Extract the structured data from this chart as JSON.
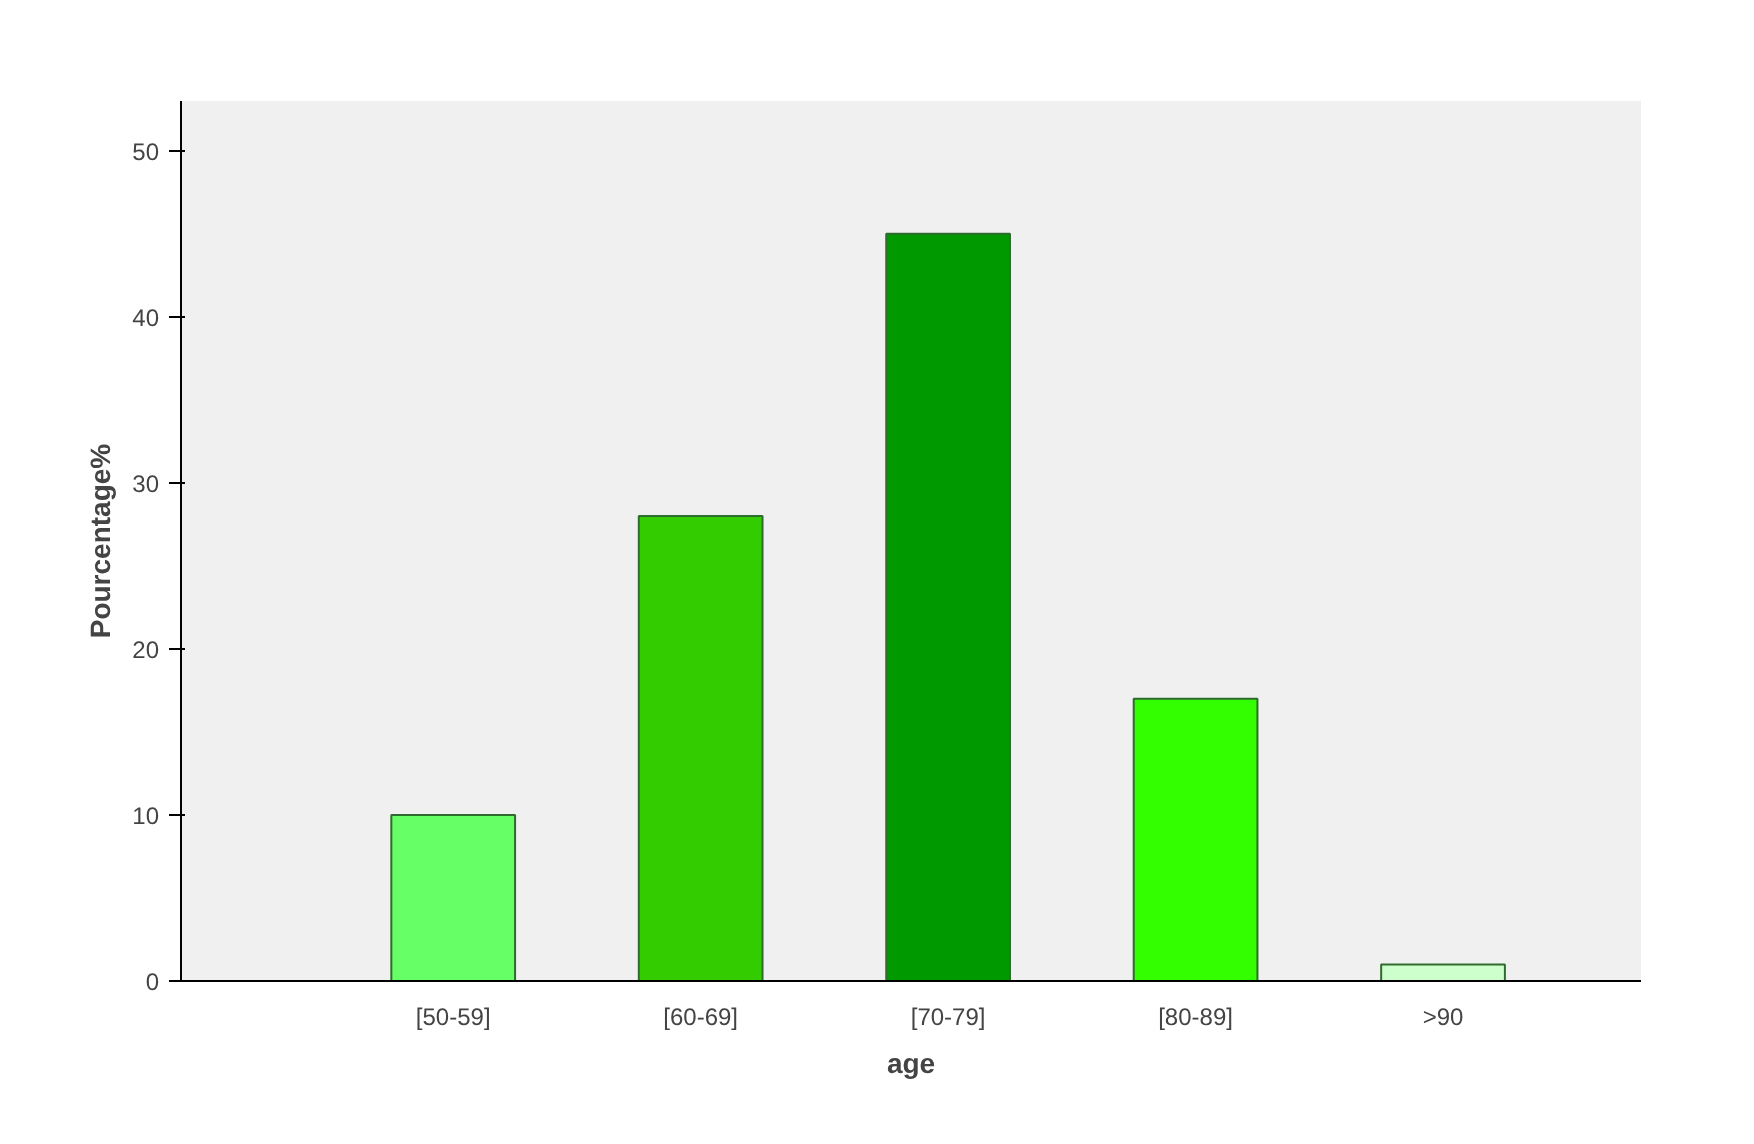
{
  "chart_data": {
    "type": "bar",
    "xlabel": "age",
    "ylabel": "Pourcentage%",
    "categories": [
      "[50-59]",
      "[60-69]",
      "[70-79]",
      "[80-89]",
      ">90"
    ],
    "values": [
      10,
      28,
      45,
      17,
      1
    ],
    "colors": [
      "#66ff66",
      "#33cc00",
      "#009900",
      "#33ff00",
      "#ccffcc"
    ],
    "ylim": [
      0,
      53
    ],
    "yticks": [
      0,
      10,
      20,
      30,
      40,
      50
    ],
    "grid": false
  }
}
